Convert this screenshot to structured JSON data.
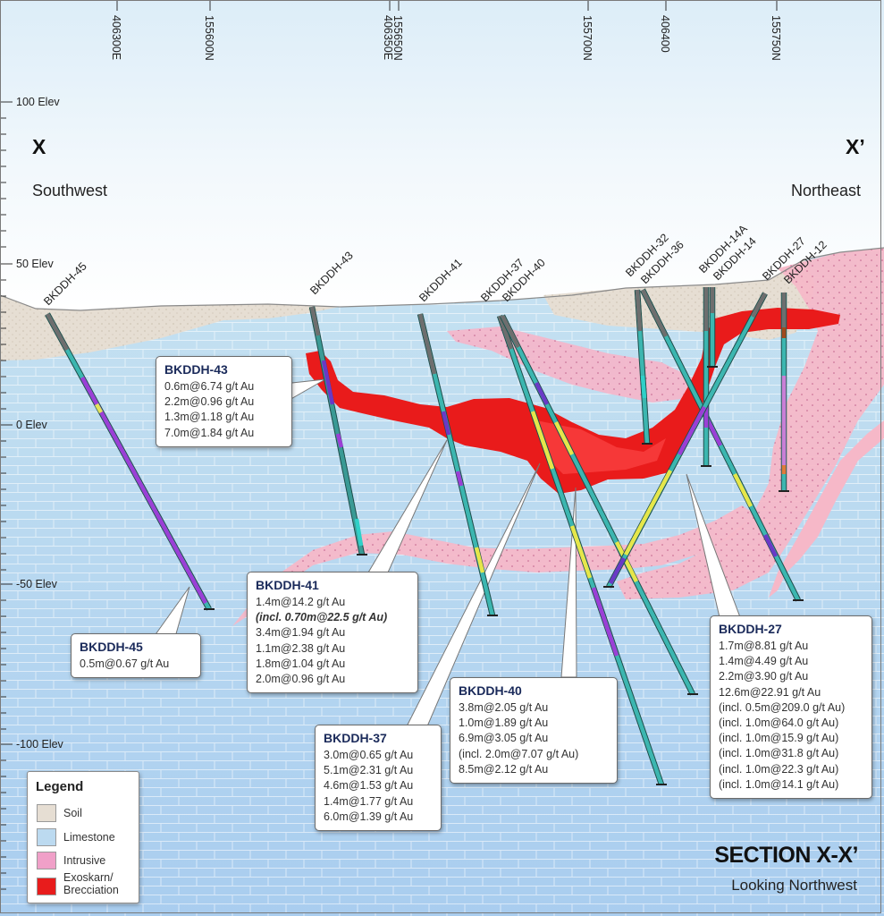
{
  "colors": {
    "sky_top": "#e9f4fb",
    "sky_bottom": "#ffffff",
    "limestone": "#bcdaf0",
    "limestone_deep": "#a8cbed",
    "soil": "#e6ded3",
    "intrusive": "#f6b8cc",
    "exoskarn": "#e81c1c",
    "drill_core": "#3bb6b0",
    "frame": "#7a7a7a"
  },
  "section": {
    "start_label": "X",
    "end_label": "X’",
    "southwest": "Southwest",
    "northeast": "Northeast",
    "title": "SECTION X-X’",
    "subtitle": "Looking Northwest"
  },
  "grid_labels": [
    "406300E",
    "155600N",
    "406350E",
    "155650N",
    "155700N",
    "406400",
    "155750N"
  ],
  "elevations": [
    "100 Elev",
    "50 Elev",
    "0 Elev",
    "-50 Elev",
    "-100 Elev"
  ],
  "holes": [
    "BKDDH-45",
    "BKDDH-43",
    "BKDDH-41",
    "BKDDH-37",
    "BKDDH-40",
    "BKDDH-32",
    "BKDDH-36",
    "BKDDH-14A",
    "BKDDH-14",
    "BKDDH-27",
    "BKDDH-12"
  ],
  "callouts": [
    {
      "title": "BKDDH-43",
      "lines": [
        "0.6m@6.74 g/t Au",
        "2.2m@0.96 g/t Au",
        "1.3m@1.18 g/t Au",
        "7.0m@1.84 g/t Au"
      ]
    },
    {
      "title": "BKDDH-41",
      "lines": [
        "1.4m@14.2 g/t Au",
        "(incl. 0.70m@22.5 g/t Au)",
        "3.4m@1.94 g/t Au",
        "1.1m@2.38 g/t Au",
        "1.8m@1.04 g/t Au",
        "2.0m@0.96 g/t Au"
      ]
    },
    {
      "title": "BKDDH-45",
      "lines": [
        "0.5m@0.67 g/t Au"
      ]
    },
    {
      "title": "BKDDH-37",
      "lines": [
        "3.0m@0.65 g/t Au",
        "5.1m@2.31 g/t Au",
        "4.6m@1.53 g/t Au",
        "1.4m@1.77 g/t Au",
        "6.0m@1.39 g/t Au"
      ]
    },
    {
      "title": "BKDDH-40",
      "lines": [
        "3.8m@2.05 g/t Au",
        "1.0m@1.89 g/t Au",
        "6.9m@3.05 g/t Au",
        "(incl. 2.0m@7.07 g/t Au)",
        "8.5m@2.12 g/t Au"
      ]
    },
    {
      "title": "BKDDH-27",
      "lines": [
        "1.7m@8.81 g/t Au",
        "1.4m@4.49 g/t Au",
        "2.2m@3.90 g/t Au",
        "12.6m@22.91 g/t Au",
        "(incl. 0.5m@209.0 g/t Au)",
        "(incl. 1.0m@64.0 g/t Au)",
        "(incl. 1.0m@15.9 g/t Au)",
        "(incl. 1.0m@31.8 g/t Au)",
        "(incl. 1.0m@22.3 g/t Au)",
        "(incl. 1.0m@14.1 g/t Au)"
      ]
    }
  ],
  "legend": {
    "title": "Legend",
    "items": [
      "Soil",
      "Limestone",
      "Intrusive",
      "Exoskarn/\nBrecciation"
    ]
  }
}
